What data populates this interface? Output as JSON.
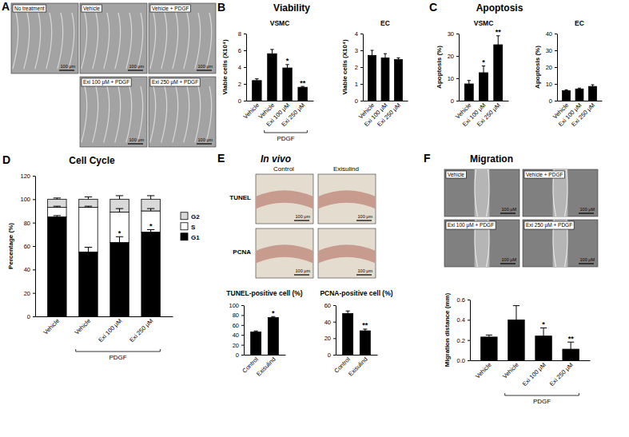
{
  "figure": {
    "A": {
      "label": "A",
      "images": [
        "No treatment",
        "Vehicle",
        "Vehicle + PDGF",
        "Exi 100 μM + PDGF",
        "Exi 250 μM + PDGF"
      ],
      "scale_bar": "100 μm"
    },
    "B": {
      "label": "B",
      "title": "Viability"
    },
    "C": {
      "label": "C",
      "title": "Apoptosis"
    },
    "D": {
      "label": "D",
      "title": "Cell Cycle"
    },
    "E": {
      "label": "E",
      "title": "In vivo",
      "rows": [
        "TUNEL",
        "PCNA"
      ],
      "columns": [
        "Control",
        "Exisulind"
      ],
      "scale_bar": "100 μm"
    },
    "F": {
      "label": "F",
      "title": "Migration",
      "images": [
        "Vehicle",
        "Vehicle + PDGF",
        "Exi 100 μM + PDGF",
        "Exi 250 μM + PDGF"
      ],
      "scale_bar": "100 μM"
    }
  },
  "chart_data": [
    {
      "type": "bar",
      "title": "VSMC",
      "y_label": "Viable cells (X10⁴)",
      "categories": [
        "Vehicle",
        "Vehicle",
        "Exi 100 μM",
        "Exi 250 μM"
      ],
      "values": [
        2.4,
        5.6,
        3.9,
        1.6
      ],
      "errors": [
        0.2,
        0.5,
        0.4,
        0.1
      ],
      "significance": [
        null,
        null,
        "*",
        "**"
      ],
      "bracket": {
        "label": "PDGF",
        "from": 1,
        "to": 3
      },
      "color": "#000000",
      "ylim": [
        0,
        8
      ],
      "yticks": [
        0,
        2,
        4,
        6,
        8
      ]
    },
    {
      "type": "bar",
      "title": "EC",
      "y_label": "Viable cells (X10⁴)",
      "categories": [
        "Vehicle",
        "Exi 100 μM",
        "Exi 250 μM"
      ],
      "values": [
        2.7,
        2.55,
        2.45
      ],
      "errors": [
        0.3,
        0.25,
        0.1
      ],
      "color": "#000000",
      "ylim": [
        0,
        4
      ],
      "yticks": [
        0,
        1,
        2,
        3,
        4
      ]
    },
    {
      "type": "bar",
      "title": "VSMC",
      "y_label": "Apoptosis (%)",
      "categories": [
        "Vehicle",
        "Exi 100 μM",
        "Exi 250 μM"
      ],
      "values": [
        7.5,
        12.5,
        25
      ],
      "errors": [
        1.5,
        3,
        4
      ],
      "significance": [
        null,
        "*",
        "**"
      ],
      "color": "#000000",
      "ylim": [
        0,
        30
      ],
      "yticks": [
        0,
        10,
        20,
        30
      ]
    },
    {
      "type": "bar",
      "title": "EC",
      "y_label": "Apoptosis (%)",
      "categories": [
        "Vehicle",
        "Exi 100 μM",
        "Exi 250 μM"
      ],
      "values": [
        6,
        7,
        8.5
      ],
      "errors": [
        0.5,
        0.5,
        1
      ],
      "color": "#000000",
      "ylim": [
        0,
        40
      ],
      "yticks": [
        0,
        10,
        20,
        30,
        40
      ]
    },
    {
      "type": "bar",
      "stacked": true,
      "legend": "right",
      "y_label": "Percentage (%)",
      "categories": [
        "Vehicle",
        "Vehicle",
        "Exi 100 μM",
        "Exi 250 μM"
      ],
      "series": [
        {
          "name": "G1",
          "color": "#000000",
          "values": [
            85,
            55,
            63,
            72
          ],
          "errors": [
            1,
            4,
            5,
            2
          ]
        },
        {
          "name": "S",
          "color": "#ffffff",
          "values": [
            8,
            38,
            26,
            18
          ],
          "errors": [
            1,
            1,
            3,
            2
          ]
        },
        {
          "name": "G2",
          "color": "#d9d9d9",
          "values": [
            7,
            7,
            11,
            10
          ],
          "errors": [
            1,
            2,
            3,
            3
          ]
        }
      ],
      "significance": [
        null,
        null,
        "*",
        "*"
      ],
      "bracket": {
        "label": "PDGF",
        "from": 1,
        "to": 3
      },
      "ylim": [
        0,
        120
      ],
      "yticks": [
        0,
        20,
        40,
        60,
        80,
        100,
        120
      ]
    },
    {
      "type": "bar",
      "title": "TUNEL-positive cell (%)",
      "categories": [
        "Control",
        "Exisulind"
      ],
      "values": [
        46,
        75
      ],
      "errors": [
        2,
        2
      ],
      "significance": [
        null,
        "*"
      ],
      "color": "#000000",
      "ylim": [
        0,
        100
      ],
      "yticks": [
        0,
        20,
        40,
        60,
        80,
        100
      ]
    },
    {
      "type": "bar",
      "title": "PCNA-positive cell (%)",
      "categories": [
        "Control",
        "Exisulind"
      ],
      "values": [
        50,
        29
      ],
      "errors": [
        3,
        2
      ],
      "significance": [
        null,
        "**"
      ],
      "color": "#000000",
      "ylim": [
        0,
        60
      ],
      "yticks": [
        0,
        20,
        40,
        60
      ]
    },
    {
      "type": "bar",
      "y_label": "Migration distance (mm)",
      "categories": [
        "Vehicle",
        "Vehicle",
        "Exi 100 μM",
        "Exi 250 μM"
      ],
      "values": [
        0.23,
        0.4,
        0.24,
        0.11
      ],
      "errors": [
        0.02,
        0.14,
        0.08,
        0.07
      ],
      "significance": [
        null,
        null,
        "*",
        "**"
      ],
      "bracket": {
        "label": "PDGF",
        "from": 1,
        "to": 3
      },
      "color": "#000000",
      "ylim": [
        0,
        0.6
      ],
      "yticks": [
        {
          "value": 0,
          "label": "0.0"
        },
        0.2,
        0.4,
        0.6
      ]
    }
  ]
}
